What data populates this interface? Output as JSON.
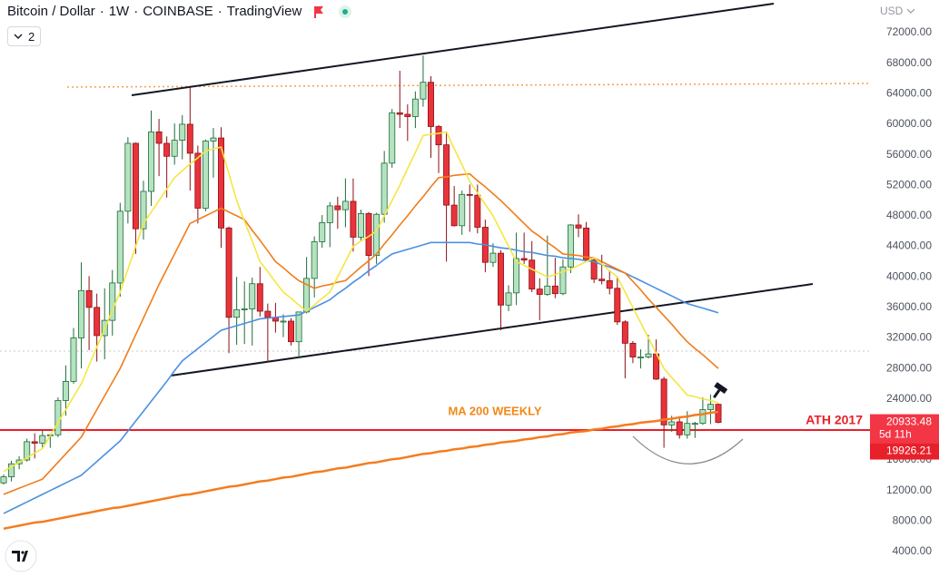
{
  "chart_data": {
    "type": "candlestick",
    "title": "Bitcoin / Dollar",
    "interval": "1W",
    "exchange": "COINBASE",
    "source": "TradingView",
    "currency": "USD",
    "layout_badge": "2",
    "ylim": [
      670,
      76280
    ],
    "yticks": [
      {
        "value": 4000,
        "label": "4000.00"
      },
      {
        "value": 8000,
        "label": "8000.00"
      },
      {
        "value": 12000,
        "label": "12000.00"
      },
      {
        "value": 16000,
        "label": "16000.00"
      },
      {
        "value": 20000,
        "label": "20000.00"
      },
      {
        "value": 24000,
        "label": "24000.00"
      },
      {
        "value": 28000,
        "label": "28000.00"
      },
      {
        "value": 32000,
        "label": "32000.00"
      },
      {
        "value": 36000,
        "label": "36000.00"
      },
      {
        "value": 40000,
        "label": "40000.00"
      },
      {
        "value": 44000,
        "label": "44000.00"
      },
      {
        "value": 48000,
        "label": "48000.00"
      },
      {
        "value": 52000,
        "label": "52000.00"
      },
      {
        "value": 56000,
        "label": "56000.00"
      },
      {
        "value": 60000,
        "label": "60000.00"
      },
      {
        "value": 64000,
        "label": "64000.00"
      },
      {
        "value": 68000,
        "label": "68000.00"
      },
      {
        "value": 72000,
        "label": "72000.00"
      }
    ],
    "grid": false,
    "categories": [
      null,
      null,
      null,
      null,
      null,
      null,
      null,
      null,
      null,
      null,
      null,
      null,
      null,
      null,
      null,
      null,
      null,
      null,
      null,
      null,
      null,
      null,
      null,
      null,
      null,
      null,
      null,
      null,
      null,
      null,
      null,
      null,
      null,
      null,
      null,
      null,
      null,
      null,
      null,
      null,
      null,
      null,
      null,
      null,
      null,
      null,
      null,
      null,
      null,
      null,
      null,
      null,
      null,
      null,
      null,
      null,
      null,
      null,
      null,
      null,
      null,
      null,
      null,
      null,
      null,
      null,
      null,
      null,
      null,
      null,
      null,
      null,
      null,
      null,
      null,
      null,
      null,
      null,
      null,
      null,
      null,
      null,
      null,
      null,
      null,
      null,
      null,
      null,
      null,
      null,
      null,
      null,
      null
    ],
    "candles": {
      "up_color": "#b5e3c0",
      "up_border": "#1e6b38",
      "down_color": "#e8333a",
      "down_border": "#8b1015",
      "open": [
        13000,
        13800,
        15500,
        16000,
        18400,
        18200,
        19200,
        19300,
        23800,
        26300,
        32000,
        38200,
        36000,
        32300,
        34300,
        39200,
        48600,
        57500,
        46300,
        51200,
        59000,
        57500,
        55800,
        57900,
        60000,
        56200,
        49000,
        57800,
        58200,
        46400,
        34700,
        35700,
        35800,
        39100,
        35500,
        34700,
        34200,
        34200,
        31500,
        35400,
        39800,
        44600,
        47100,
        49300,
        48800,
        49900,
        45200,
        48300,
        42800,
        48200,
        54900,
        61500,
        61300,
        61000,
        63300,
        65500,
        59700,
        57300,
        49400,
        46700,
        50800,
        50700,
        46500,
        41900,
        43100,
        36300,
        37900,
        42400,
        42200,
        38400,
        37700,
        38800,
        37800,
        41300,
        46800,
        46400,
        42200,
        39700,
        39500,
        38500,
        34100,
        31300,
        29500,
        29500,
        29900,
        26600,
        20600,
        21000,
        19300,
        20800,
        20800,
        22600,
        23300
      ],
      "high": [
        14100,
        15900,
        16500,
        18800,
        19500,
        19900,
        19400,
        24200,
        28400,
        33300,
        41900,
        40100,
        37800,
        38500,
        40900,
        49700,
        58300,
        57600,
        52600,
        61800,
        60700,
        58400,
        60100,
        61200,
        64800,
        57200,
        58000,
        59500,
        59600,
        46600,
        40000,
        39400,
        39900,
        41300,
        36500,
        36600,
        35100,
        34600,
        35400,
        42600,
        45300,
        48100,
        49800,
        50500,
        52900,
        52900,
        48800,
        48500,
        48400,
        56500,
        62000,
        67000,
        62600,
        64300,
        69000,
        66300,
        59900,
        59000,
        51900,
        51300,
        52100,
        52100,
        47500,
        44400,
        43500,
        38900,
        45800,
        45800,
        44700,
        39800,
        45400,
        42500,
        42300,
        46900,
        48200,
        47200,
        42400,
        42900,
        40800,
        40000,
        34300,
        31600,
        30500,
        32400,
        31800,
        26900,
        21800,
        21600,
        22400,
        21000,
        24200,
        24600,
        23400
      ],
      "low": [
        12800,
        13200,
        14800,
        15800,
        16200,
        17600,
        17600,
        19000,
        21800,
        26000,
        28000,
        30400,
        28900,
        29200,
        32300,
        37400,
        47000,
        43000,
        44900,
        49300,
        53200,
        50400,
        54700,
        55400,
        51300,
        47000,
        48600,
        53000,
        43800,
        30000,
        31100,
        31200,
        31000,
        34800,
        28800,
        32700,
        32100,
        31000,
        29300,
        35200,
        37300,
        43800,
        43900,
        46300,
        46500,
        43300,
        44800,
        40100,
        41700,
        47100,
        54300,
        59500,
        57800,
        59500,
        62300,
        55600,
        53600,
        42000,
        46600,
        45500,
        45900,
        45700,
        40600,
        41300,
        33000,
        35500,
        36300,
        41700,
        38000,
        34300,
        37500,
        37200,
        37600,
        40500,
        45200,
        42100,
        39200,
        39000,
        37700,
        33700,
        26700,
        28700,
        28000,
        29300,
        26500,
        17600,
        19700,
        18800,
        18800,
        18900,
        20600,
        20700,
        20800
      ],
      "close": [
        13800,
        15500,
        16000,
        18400,
        18200,
        19200,
        19300,
        23800,
        26300,
        32000,
        38200,
        36000,
        32300,
        34300,
        39200,
        48600,
        57500,
        46300,
        51200,
        59000,
        57500,
        55800,
        57900,
        60000,
        56200,
        49000,
        57800,
        58200,
        46400,
        34700,
        35700,
        35800,
        39100,
        35500,
        34700,
        34200,
        34200,
        31500,
        35400,
        39800,
        44600,
        47100,
        49300,
        48800,
        49900,
        45200,
        48300,
        42800,
        48200,
        54900,
        61500,
        61300,
        61000,
        63300,
        65500,
        59700,
        57300,
        49400,
        46700,
        50800,
        50700,
        46500,
        41900,
        43100,
        36300,
        37900,
        42400,
        42200,
        38400,
        37700,
        38800,
        37800,
        41300,
        46800,
        46400,
        42200,
        39700,
        39500,
        38500,
        34100,
        31300,
        29500,
        29500,
        29900,
        26600,
        20600,
        21000,
        19300,
        20800,
        20800,
        22600,
        23300,
        20933.48
      ]
    },
    "lines": [
      {
        "color": "#f57c1f",
        "width": 2.5,
        "values": [
          7000,
          7200,
          7400,
          7600,
          7800,
          7900,
          8100,
          8300,
          8500,
          8700,
          8900,
          9100,
          9300,
          9500,
          9700,
          9800,
          10000,
          10200,
          10400,
          10600,
          10800,
          11000,
          11200,
          11400,
          11500,
          11700,
          11900,
          12100,
          12300,
          12500,
          12600,
          12800,
          13000,
          13200,
          13300,
          13500,
          13700,
          13800,
          14000,
          14200,
          14400,
          14500,
          14700,
          14900,
          15000,
          15200,
          15400,
          15600,
          15700,
          15900,
          16100,
          16200,
          16400,
          16600,
          16800,
          16900,
          17100,
          17200,
          17400,
          17500,
          17700,
          17800,
          18000,
          18100,
          18300,
          18400,
          18500,
          18700,
          18800,
          19000,
          19100,
          19300,
          19400,
          19600,
          19700,
          19800,
          20000,
          20100,
          20300,
          20400,
          20600,
          20700,
          20900,
          21000,
          21100,
          21300,
          21400,
          21600,
          21700,
          21900,
          22000,
          22200,
          22300
        ]
      },
      {
        "color": "#4a90e2",
        "width": 1.6,
        "values": [
          9000,
          9500,
          10000,
          10500,
          11000,
          11500,
          12000,
          12500,
          13000,
          13500,
          14000,
          14900,
          15800,
          16700,
          17600,
          18500,
          19800,
          21100,
          22400,
          23700,
          25000,
          26300,
          27700,
          29000,
          29800,
          30600,
          31400,
          32200,
          33000,
          33300,
          33600,
          33900,
          34200,
          34500,
          34600,
          34700,
          34800,
          34900,
          35000,
          35500,
          36000,
          36500,
          37000,
          37800,
          38500,
          39300,
          40000,
          40800,
          41500,
          42300,
          43000,
          43300,
          43600,
          43900,
          44200,
          44500,
          44500,
          44500,
          44500,
          44500,
          44500,
          44300,
          44200,
          44000,
          43800,
          43700,
          43500,
          43300,
          43200,
          43000,
          42800,
          42700,
          42500,
          42400,
          42300,
          42100,
          42000,
          41600,
          41300,
          40900,
          40500,
          40000,
          39500,
          39000,
          38500,
          38000,
          37500,
          37000,
          36500,
          36200,
          35900,
          35600,
          35300
        ]
      },
      {
        "color": "#ef7d1a",
        "width": 1.6,
        "values": [
          11500,
          11900,
          12300,
          12700,
          13100,
          13500,
          14600,
          15700,
          16800,
          17900,
          19000,
          20800,
          22600,
          24400,
          26200,
          28000,
          30200,
          32400,
          34600,
          36800,
          39000,
          41000,
          43000,
          45000,
          47000,
          47500,
          48000,
          48500,
          49000,
          48500,
          48000,
          47500,
          46100,
          44800,
          43400,
          42000,
          41200,
          40300,
          39500,
          39000,
          38500,
          38800,
          39000,
          39300,
          39500,
          40400,
          41300,
          42100,
          43000,
          44300,
          45500,
          46800,
          48000,
          49300,
          50500,
          51800,
          53000,
          53100,
          53300,
          53400,
          53500,
          52600,
          51800,
          50900,
          50000,
          49000,
          48000,
          47000,
          46000,
          45300,
          44500,
          43800,
          43000,
          42900,
          42800,
          42600,
          42500,
          42000,
          41500,
          41000,
          40500,
          39400,
          38300,
          37100,
          36000,
          34900,
          33800,
          32600,
          31500,
          30600,
          29800,
          28900,
          28000
        ]
      },
      {
        "color": "#f5e642",
        "width": 1.6,
        "values": [
          14500,
          15100,
          15700,
          16300,
          16900,
          17500,
          19200,
          20900,
          22600,
          24300,
          26000,
          28400,
          30800,
          33200,
          35600,
          38000,
          41000,
          44000,
          47000,
          48500,
          50000,
          51500,
          53000,
          53900,
          54800,
          55600,
          56500,
          56800,
          57000,
          53500,
          50000,
          47300,
          44700,
          42000,
          40700,
          39300,
          38000,
          37200,
          36300,
          35500,
          36300,
          37200,
          38000,
          40000,
          42000,
          44000,
          44700,
          45300,
          46000,
          48000,
          50000,
          52000,
          54200,
          56300,
          58500,
          58700,
          58800,
          59000,
          56800,
          54700,
          52500,
          51000,
          49500,
          48000,
          46000,
          44000,
          42000,
          41500,
          41000,
          40500,
          40000,
          40300,
          40700,
          41000,
          41500,
          42000,
          42500,
          41700,
          40800,
          40000,
          38000,
          36000,
          34000,
          32000,
          30000,
          28000,
          26800,
          25700,
          24500,
          24300,
          24000,
          23800,
          23500
        ]
      }
    ],
    "last_price": 20933.48,
    "last_price_color": "#f23645",
    "countdown": "5d 11h",
    "hlines": [
      {
        "value": 19926.21,
        "label": "ATH 2017",
        "color": "#e8202a"
      }
    ],
    "annotations": [
      {
        "text": "MA 200 WEEKLY",
        "color": "#f0891a"
      }
    ]
  }
}
